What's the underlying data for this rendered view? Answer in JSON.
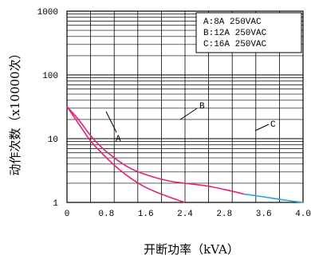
{
  "chart_data": {
    "type": "line",
    "xlabel": "开断功率（kVA）",
    "ylabel": "动作次数（x10000次）",
    "xlim": [
      0,
      4.0
    ],
    "ylim": [
      1,
      1000
    ],
    "yscale": "log",
    "x_ticks": [
      "0",
      "0.8",
      "1.6",
      "2.4",
      "2.8",
      "3.6",
      "4.0"
    ],
    "y_ticks": [
      "1",
      "10",
      "100",
      "1000"
    ],
    "grid": true,
    "legend": {
      "placement": "top-right",
      "entries": [
        "A:8A 250VAC",
        "B:12A 250VAC",
        "C:16A 250VAC"
      ]
    },
    "series": [
      {
        "name": "A",
        "color": "#e8207a",
        "points": [
          [
            0,
            32
          ],
          [
            0.2,
            17
          ],
          [
            0.4,
            9
          ],
          [
            0.6,
            5.8
          ],
          [
            0.8,
            3.8
          ],
          [
            1.0,
            2.7
          ],
          [
            1.2,
            2.0
          ],
          [
            1.4,
            1.6
          ],
          [
            1.6,
            1.35
          ],
          [
            1.8,
            1.15
          ],
          [
            2.0,
            1.0
          ]
        ]
      },
      {
        "name": "B",
        "color": "#e8207a",
        "points": [
          [
            0,
            32
          ],
          [
            0.2,
            20
          ],
          [
            0.4,
            11
          ],
          [
            0.6,
            7.0
          ],
          [
            0.8,
            5.0
          ],
          [
            1.0,
            3.7
          ],
          [
            1.2,
            3.0
          ],
          [
            1.4,
            2.6
          ],
          [
            1.6,
            2.3
          ],
          [
            1.8,
            2.1
          ],
          [
            2.0,
            2.0
          ],
          [
            2.2,
            1.9
          ],
          [
            2.4,
            1.8
          ],
          [
            2.6,
            1.65
          ],
          [
            2.8,
            1.5
          ],
          [
            3.0,
            1.35
          ]
        ]
      },
      {
        "name": "C",
        "color": "#2aa7d6",
        "points": [
          [
            3.0,
            1.35
          ],
          [
            3.2,
            1.27
          ],
          [
            3.4,
            1.2
          ],
          [
            3.6,
            1.12
          ],
          [
            3.8,
            1.05
          ],
          [
            4.0,
            1.0
          ]
        ]
      }
    ]
  }
}
